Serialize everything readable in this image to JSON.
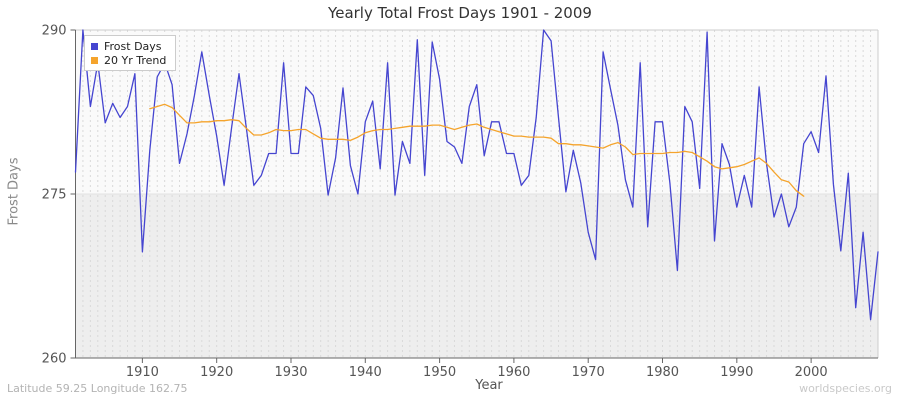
{
  "title": "Yearly Total Frost Days 1901 - 2009",
  "axes": {
    "y_label": "Frost Days",
    "x_label": "Year",
    "y_ticks": [
      260,
      275,
      290
    ],
    "x_ticks": [
      1910,
      1920,
      1930,
      1940,
      1950,
      1960,
      1970,
      1980,
      1990,
      2000
    ]
  },
  "legend": {
    "items": [
      {
        "label": "Frost Days",
        "color": "#4545d0",
        "icon": "blue-square-swatch"
      },
      {
        "label": "20 Yr Trend",
        "color": "#f5a42c",
        "icon": "orange-square-swatch"
      }
    ]
  },
  "footer": {
    "coordinates": "Latitude 59.25 Longitude 162.75",
    "watermark": "worldspecies.org"
  },
  "colors": {
    "frost_line": "#4545d0",
    "trend_line": "#f5a42c",
    "band_upper": "#fafafa",
    "band_lower": "#eeeeee",
    "gridline": "#d9d9d9",
    "midline": "#e2e2e2",
    "plot_border": "#cccccc",
    "axis": "#666666",
    "tick_text": "#555555"
  },
  "chart_data": {
    "type": "line",
    "title": "Yearly Total Frost Days 1901 - 2009",
    "xlabel": "Year",
    "ylabel": "Frost Days",
    "ylim": [
      260,
      290
    ],
    "xlim": [
      1901,
      2009
    ],
    "grid": "vertical-dashed-per-year, horizontal line at 275",
    "legend_position": "top-left",
    "series": [
      {
        "name": "Frost Days",
        "color": "#4545d0",
        "x_start": 1901,
        "x_step": 1,
        "values": [
          277.0,
          290.0,
          283.0,
          287.0,
          281.5,
          283.3,
          282.0,
          283.0,
          286.0,
          269.7,
          279.0,
          285.7,
          287.0,
          285.0,
          277.8,
          280.5,
          284.0,
          288.0,
          284.0,
          280.3,
          275.8,
          281.0,
          286.0,
          281.0,
          275.8,
          276.7,
          278.7,
          278.7,
          287.0,
          278.7,
          278.7,
          284.8,
          284.0,
          281.0,
          274.9,
          278.3,
          284.7,
          277.6,
          275.0,
          281.6,
          283.5,
          277.3,
          287.0,
          274.9,
          279.8,
          277.8,
          289.1,
          276.7,
          288.9,
          285.5,
          279.8,
          279.3,
          277.8,
          283.0,
          285.0,
          278.5,
          281.6,
          281.6,
          278.7,
          278.7,
          275.8,
          276.7,
          282.0,
          290.0,
          289.0,
          282.0,
          275.2,
          279.0,
          276.0,
          271.5,
          269.0,
          288.0,
          284.6,
          281.3,
          276.3,
          273.8,
          287.0,
          272.0,
          281.6,
          281.6,
          276.0,
          268.0,
          283.0,
          281.6,
          275.5,
          289.8,
          270.7,
          279.6,
          277.7,
          273.8,
          276.7,
          273.8,
          284.8,
          277.8,
          272.9,
          275.0,
          272.0,
          273.8,
          279.6,
          280.7,
          278.8,
          285.8,
          275.9,
          269.8,
          276.9,
          264.6,
          271.5,
          263.5,
          269.7
        ]
      },
      {
        "name": "20 Yr Trend",
        "color": "#f5a42c",
        "x_start": 1911,
        "x_step": 1,
        "values": [
          282.8,
          283.0,
          283.2,
          282.9,
          282.2,
          281.5,
          281.5,
          281.6,
          281.6,
          281.7,
          281.7,
          281.8,
          281.7,
          281.0,
          280.4,
          280.4,
          280.6,
          280.9,
          280.8,
          280.8,
          280.9,
          280.9,
          280.5,
          280.1,
          280.0,
          280.0,
          280.0,
          279.9,
          280.2,
          280.6,
          280.8,
          280.9,
          280.9,
          281.0,
          281.1,
          281.2,
          281.2,
          281.2,
          281.3,
          281.3,
          281.1,
          280.9,
          281.1,
          281.3,
          281.4,
          281.1,
          280.9,
          280.7,
          280.5,
          280.3,
          280.3,
          280.2,
          280.2,
          280.2,
          280.1,
          279.6,
          279.6,
          279.5,
          279.5,
          279.4,
          279.3,
          279.2,
          279.5,
          279.7,
          279.3,
          278.6,
          278.7,
          278.7,
          278.7,
          278.7,
          278.8,
          278.8,
          278.9,
          278.8,
          278.4,
          278.0,
          277.5,
          277.3,
          277.4,
          277.5,
          277.7,
          278.0,
          278.3,
          277.8,
          277.0,
          276.3,
          276.1,
          275.3,
          274.8
        ]
      }
    ]
  }
}
